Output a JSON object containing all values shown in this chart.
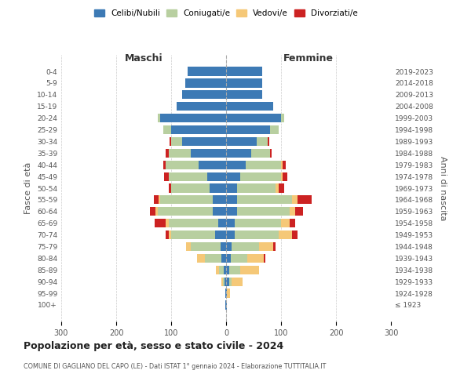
{
  "age_groups": [
    "100+",
    "95-99",
    "90-94",
    "85-89",
    "80-84",
    "75-79",
    "70-74",
    "65-69",
    "60-64",
    "55-59",
    "50-54",
    "45-49",
    "40-44",
    "35-39",
    "30-34",
    "25-29",
    "20-24",
    "15-19",
    "10-14",
    "5-9",
    "0-4"
  ],
  "birth_years": [
    "≤ 1923",
    "1924-1928",
    "1929-1933",
    "1934-1938",
    "1939-1943",
    "1944-1948",
    "1949-1953",
    "1954-1958",
    "1959-1963",
    "1964-1968",
    "1969-1973",
    "1974-1978",
    "1979-1983",
    "1984-1988",
    "1989-1993",
    "1994-1998",
    "1999-2003",
    "2004-2008",
    "2009-2013",
    "2014-2018",
    "2019-2023"
  ],
  "males": {
    "celibi": [
      2,
      2,
      3,
      5,
      8,
      10,
      20,
      15,
      25,
      25,
      30,
      35,
      50,
      65,
      80,
      100,
      120,
      90,
      80,
      75,
      70
    ],
    "coniugati": [
      0,
      0,
      3,
      8,
      30,
      55,
      80,
      90,
      100,
      95,
      70,
      70,
      60,
      40,
      20,
      15,
      5,
      0,
      0,
      0,
      0
    ],
    "vedovi": [
      0,
      0,
      3,
      5,
      15,
      8,
      5,
      5,
      3,
      3,
      0,
      0,
      0,
      0,
      0,
      0,
      0,
      0,
      0,
      0,
      0
    ],
    "divorziati": [
      0,
      0,
      0,
      0,
      0,
      0,
      5,
      20,
      10,
      8,
      5,
      8,
      5,
      5,
      3,
      0,
      0,
      0,
      0,
      0,
      0
    ]
  },
  "females": {
    "nubili": [
      2,
      2,
      5,
      5,
      8,
      10,
      15,
      15,
      20,
      20,
      20,
      25,
      35,
      45,
      55,
      80,
      100,
      85,
      65,
      65,
      65
    ],
    "coniugate": [
      0,
      0,
      5,
      20,
      30,
      50,
      80,
      85,
      95,
      100,
      70,
      75,
      65,
      35,
      20,
      15,
      5,
      0,
      0,
      0,
      0
    ],
    "vedove": [
      0,
      5,
      20,
      35,
      30,
      25,
      25,
      15,
      10,
      10,
      5,
      3,
      3,
      0,
      0,
      0,
      0,
      0,
      0,
      0,
      0
    ],
    "divorziate": [
      0,
      0,
      0,
      0,
      3,
      5,
      10,
      10,
      15,
      25,
      10,
      8,
      5,
      3,
      3,
      0,
      0,
      0,
      0,
      0,
      0
    ]
  },
  "colors": {
    "celibi": "#3d7ab5",
    "coniugati": "#b8cfa0",
    "vedovi": "#f5c878",
    "divorziati": "#cc2222"
  },
  "title": "Popolazione per età, sesso e stato civile - 2024",
  "subtitle": "COMUNE DI GAGLIANO DEL CAPO (LE) - Dati ISTAT 1° gennaio 2024 - Elaborazione TUTTITALIA.IT",
  "xlabel_left": "Maschi",
  "xlabel_right": "Femmine",
  "ylabel_left": "Fasce di età",
  "ylabel_right": "Anni di nascita",
  "xlim": 300,
  "bg_color": "#ffffff",
  "grid_color": "#cccccc"
}
